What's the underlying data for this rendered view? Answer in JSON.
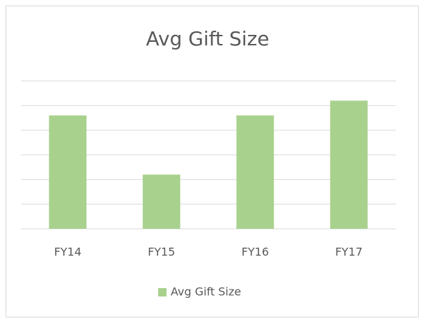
{
  "chart_data": {
    "type": "bar",
    "title": "Avg Gift Size",
    "categories": [
      "FY14",
      "FY15",
      "FY16",
      "FY17"
    ],
    "series": [
      {
        "name": "Avg Gift Size",
        "color": "#a9d18e",
        "values": [
          4.6,
          2.2,
          4.6,
          5.2
        ]
      }
    ],
    "ylim": [
      0,
      6
    ],
    "yticks": [
      0,
      1,
      2,
      3,
      4,
      5,
      6
    ],
    "grid": true,
    "legend": "bottom"
  }
}
